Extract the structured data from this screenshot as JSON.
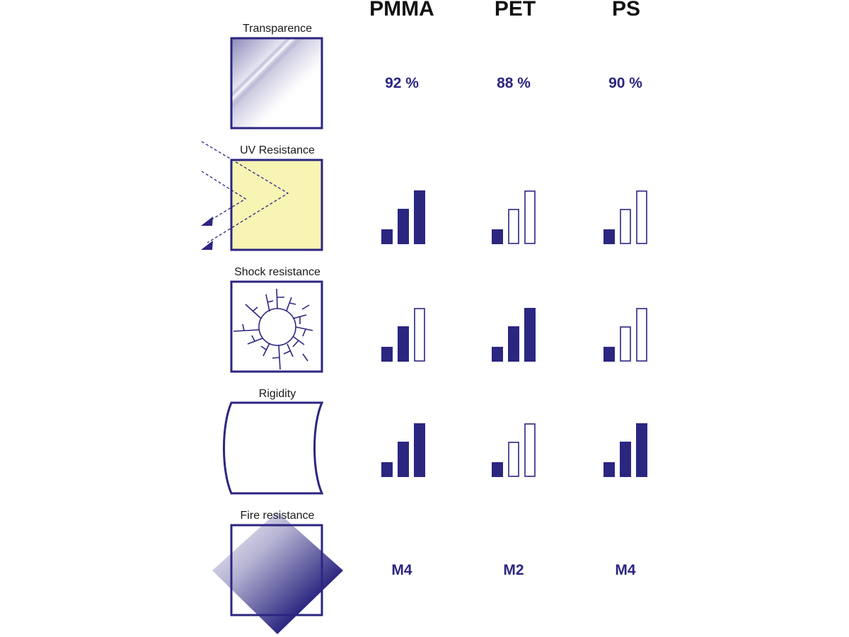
{
  "materials": [
    "PMMA",
    "PET",
    "PS"
  ],
  "rows": [
    {
      "key": "transparence",
      "label": "Transparence",
      "kind": "text",
      "values": [
        "92 %",
        "88 %",
        "90 %"
      ]
    },
    {
      "key": "uv",
      "label": "UV Resistance",
      "kind": "bars",
      "levels": [
        3,
        1,
        1
      ]
    },
    {
      "key": "shock",
      "label": "Shock resistance",
      "kind": "bars",
      "levels": [
        2,
        3,
        1
      ]
    },
    {
      "key": "rigidity",
      "label": "Rigidity",
      "kind": "bars",
      "levels": [
        3,
        1,
        3
      ]
    },
    {
      "key": "fire",
      "label": "Fire resistance",
      "kind": "text",
      "values": [
        "M4",
        "M2",
        "M4"
      ]
    }
  ],
  "bar_scale_max": 3,
  "colors": {
    "primary": "#2b2680",
    "uv_fill": "#f8f4b4",
    "text": "#1a1a1a"
  }
}
